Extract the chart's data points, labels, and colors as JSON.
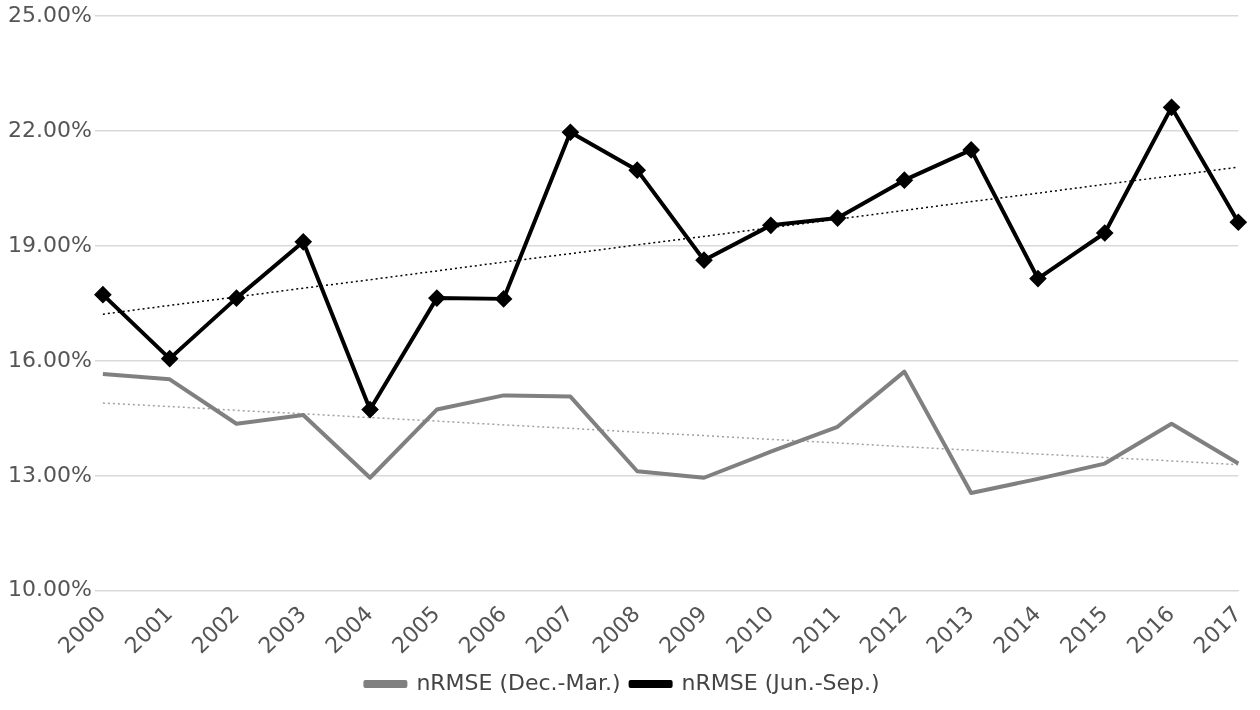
{
  "chart_data": {
    "type": "line",
    "categories": [
      "2000",
      "2001",
      "2002",
      "2003",
      "2004",
      "2005",
      "2006",
      "2007",
      "2008",
      "2009",
      "2010",
      "2011",
      "2012",
      "2013",
      "2014",
      "2015",
      "2016",
      "2017"
    ],
    "ylim": [
      10,
      25
    ],
    "yticks": [
      {
        "value": 10,
        "label": "10.00%"
      },
      {
        "value": 13,
        "label": "13.00%"
      },
      {
        "value": 16,
        "label": "16.00%"
      },
      {
        "value": 19,
        "label": "19.00%"
      },
      {
        "value": 22,
        "label": "22.00%"
      },
      {
        "value": 25,
        "label": "25.00%"
      }
    ],
    "grid": "y",
    "legend": "bottom",
    "series": [
      {
        "name": "nRMSE (Dec.-Mar.)",
        "color": "#808080",
        "marker": "none",
        "line_style": "solid",
        "values": [
          15.66,
          15.52,
          14.36,
          14.59,
          12.95,
          14.73,
          15.1,
          15.07,
          13.12,
          12.95,
          13.63,
          14.28,
          15.72,
          12.55,
          12.92,
          13.32,
          14.36,
          13.32
        ]
      },
      {
        "name": "nRMSE (Jun.-Sep.)",
        "color": "#000000",
        "marker": "diamond",
        "line_style": "solid",
        "values": [
          17.73,
          16.06,
          17.64,
          19.11,
          14.73,
          17.64,
          17.62,
          21.97,
          20.98,
          18.63,
          19.54,
          19.73,
          20.72,
          21.51,
          18.15,
          19.34,
          22.62,
          19.62
        ]
      },
      {
        "type": "line",
        "color": "#a0a0a0",
        "marker": "none",
        "line_style": "dotted",
        "values": [
          14.9,
          14.81,
          14.71,
          14.62,
          14.52,
          14.43,
          14.33,
          14.24,
          14.14,
          14.05,
          13.95,
          13.86,
          13.76,
          13.67,
          13.57,
          13.48,
          13.39,
          13.29
        ]
      },
      {
        "type": "line",
        "color": "#000000",
        "marker": "none",
        "line_style": "dotted",
        "values": [
          17.22,
          17.45,
          17.67,
          17.9,
          18.12,
          18.35,
          18.58,
          18.8,
          19.03,
          19.25,
          19.48,
          19.7,
          19.93,
          20.16,
          20.38,
          20.61,
          20.83,
          21.06
        ]
      }
    ]
  }
}
